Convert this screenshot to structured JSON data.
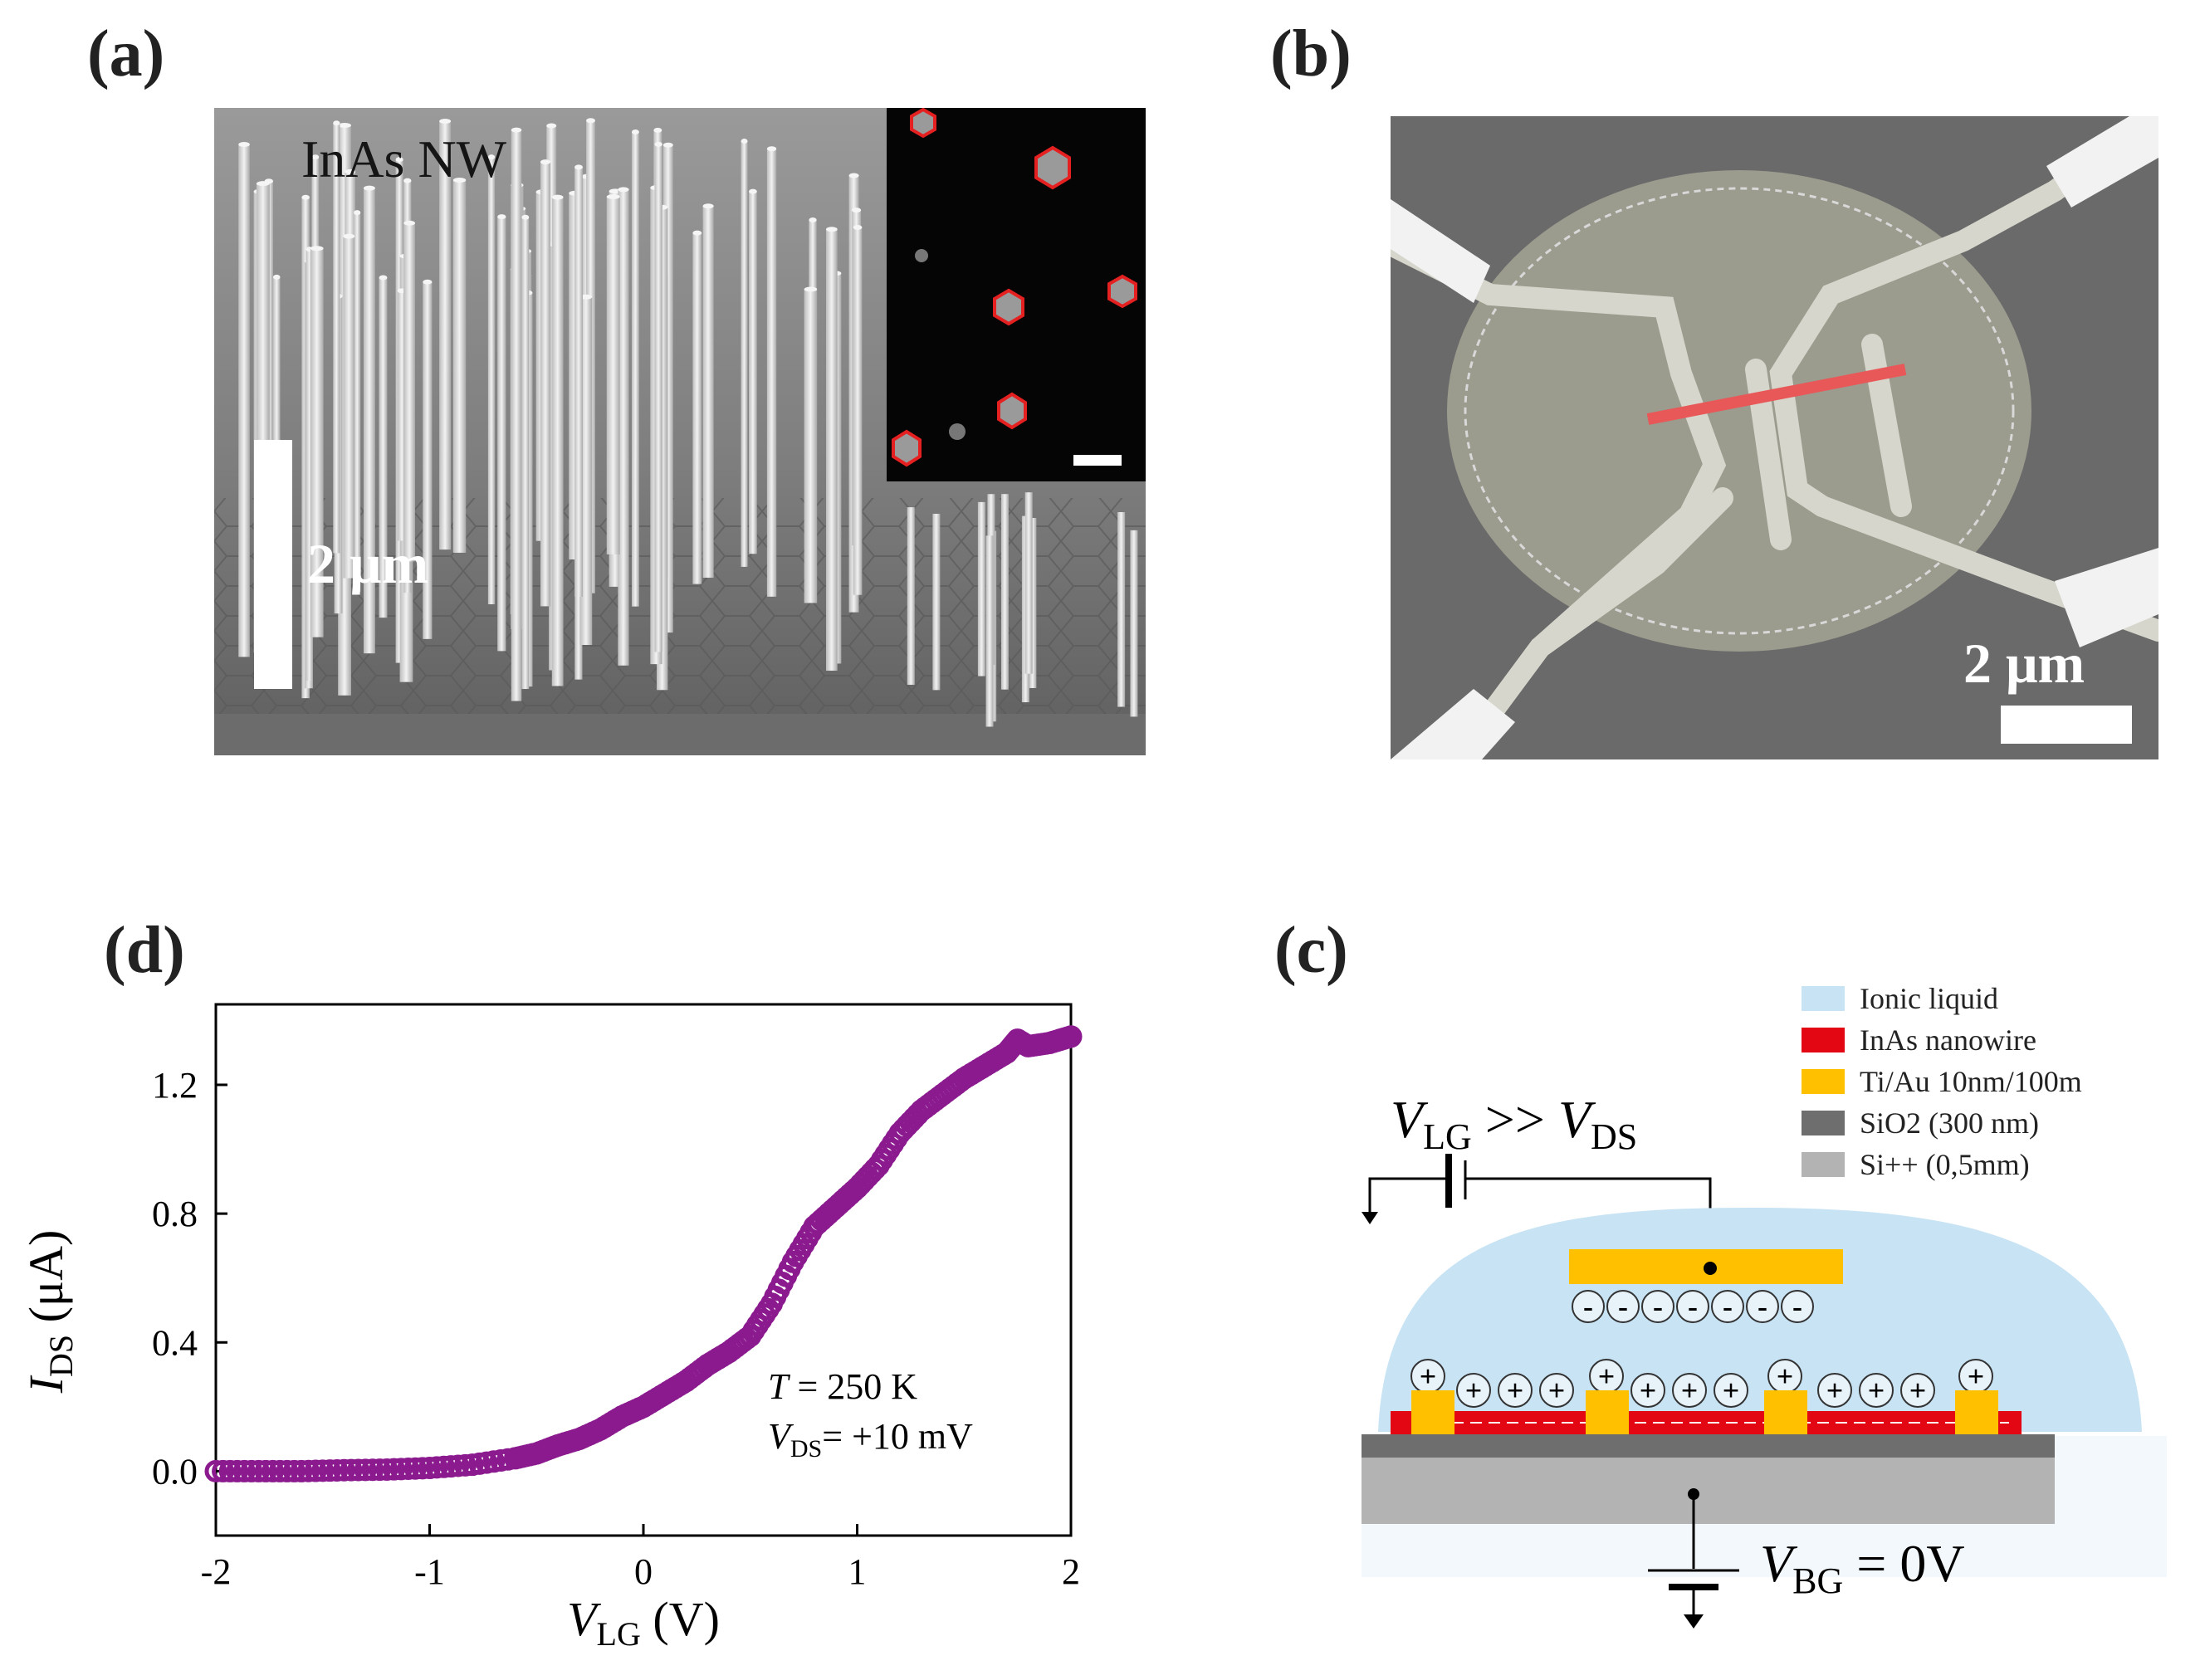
{
  "panels": {
    "a": {
      "label": "(a)",
      "caption": "InAs NW",
      "scalebar": "2 μm"
    },
    "b": {
      "label": "(b)",
      "scalebar": "2 μm"
    },
    "c": {
      "label": "(c)",
      "legend": [
        {
          "text": "Ionic liquid",
          "color": "#c7e3f4"
        },
        {
          "text": "InAs nanowire",
          "color": "#e30613"
        },
        {
          "text": "Ti/Au 10nm/100m",
          "color": "#ffc000"
        },
        {
          "text": "SiO2 (300 nm)",
          "color": "#6e6e6e"
        },
        {
          "text": "Si++ (0,5mm)",
          "color": "#b3b3b3"
        }
      ],
      "vlg_label": {
        "main": "V",
        "sub": "LG",
        "rel": " >> ",
        "main2": "V",
        "sub2": "DS"
      },
      "vbg_label": {
        "main": "V",
        "sub": "BG",
        "rest": " = 0V"
      },
      "minus": "-",
      "plus": "+"
    },
    "d": {
      "label": "(d)",
      "annotation_T": {
        "var": "T",
        "rest": " = 250 K"
      },
      "annotation_V": {
        "var": "V",
        "sub": "DS",
        "rest": "= +10 mV"
      }
    }
  },
  "chart_data": {
    "type": "scatter",
    "title": "",
    "xlabel": "V_LG (V)",
    "ylabel": "I_DS (μA)",
    "xlabel_parts": {
      "var": "V",
      "sub": "LG",
      "unit": " (V)"
    },
    "ylabel_parts": {
      "var": "I",
      "sub": "DS",
      "unit": " (μA)"
    },
    "xlim": [
      -2,
      2
    ],
    "ylim": [
      -0.2,
      1.45
    ],
    "xticks": [
      -2,
      -1,
      0,
      1,
      2
    ],
    "xtick_labels": [
      "-2",
      "-1",
      "0",
      "1",
      "2"
    ],
    "yticks": [
      0.0,
      0.4,
      0.8,
      1.2
    ],
    "ytick_labels": [
      "0.0",
      "0.4",
      "0.8",
      "1.2"
    ],
    "series": [
      {
        "name": "I_DS",
        "color": "#8b1a8f",
        "x": [
          -2.0,
          -1.8,
          -1.6,
          -1.4,
          -1.2,
          -1.0,
          -0.8,
          -0.6,
          -0.5,
          -0.4,
          -0.3,
          -0.2,
          -0.1,
          0.0,
          0.1,
          0.2,
          0.3,
          0.4,
          0.5,
          0.6,
          0.7,
          0.8,
          0.9,
          1.0,
          1.1,
          1.2,
          1.3,
          1.4,
          1.5,
          1.6,
          1.7,
          1.75,
          1.8,
          1.9,
          2.0
        ],
        "y": [
          0.0,
          0.0,
          0.0,
          0.003,
          0.005,
          0.01,
          0.02,
          0.04,
          0.055,
          0.08,
          0.1,
          0.13,
          0.17,
          0.2,
          0.24,
          0.28,
          0.33,
          0.37,
          0.42,
          0.52,
          0.65,
          0.76,
          0.82,
          0.88,
          0.95,
          1.05,
          1.12,
          1.17,
          1.22,
          1.26,
          1.3,
          1.34,
          1.32,
          1.33,
          1.35
        ]
      }
    ]
  }
}
